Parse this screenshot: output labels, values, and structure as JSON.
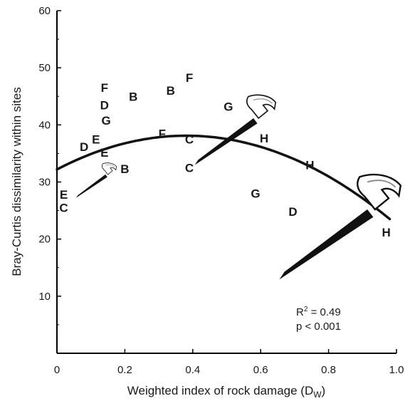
{
  "chart_data": {
    "type": "scatter",
    "title": "",
    "xlabel": "Weighted index of rock damage (D",
    "xlabel_sub": "W",
    "xlabel_close": ")",
    "ylabel": "Bray-Curtis dissimilarity within sites",
    "xlim": [
      0,
      1.0
    ],
    "ylim": [
      0,
      60
    ],
    "x_ticks": [
      "0",
      "0.2",
      "0.4",
      "0.6",
      "0.8",
      "1.0"
    ],
    "y_ticks": [
      "10",
      "20",
      "30",
      "40",
      "50",
      "60"
    ],
    "x_tick_values": [
      0,
      0.2,
      0.4,
      0.6,
      0.8,
      1.0
    ],
    "y_tick_values": [
      10,
      20,
      30,
      40,
      50,
      60
    ],
    "grid": false,
    "points": [
      {
        "label": "F",
        "x": 0.14,
        "y": 46.5
      },
      {
        "label": "D",
        "x": 0.14,
        "y": 43.5
      },
      {
        "label": "G",
        "x": 0.145,
        "y": 40.8
      },
      {
        "label": "E",
        "x": 0.115,
        "y": 37.5
      },
      {
        "label": "D",
        "x": 0.08,
        "y": 36.2
      },
      {
        "label": "E",
        "x": 0.14,
        "y": 35.2
      },
      {
        "label": "B",
        "x": 0.2,
        "y": 32.3
      },
      {
        "label": "E",
        "x": 0.02,
        "y": 27.8
      },
      {
        "label": "C",
        "x": 0.02,
        "y": 25.5
      },
      {
        "label": "B",
        "x": 0.225,
        "y": 45.0
      },
      {
        "label": "B",
        "x": 0.335,
        "y": 46.0
      },
      {
        "label": "F",
        "x": 0.39,
        "y": 48.3
      },
      {
        "label": "F",
        "x": 0.31,
        "y": 38.5
      },
      {
        "label": "C",
        "x": 0.39,
        "y": 37.5
      },
      {
        "label": "C",
        "x": 0.39,
        "y": 32.5
      },
      {
        "label": "G",
        "x": 0.505,
        "y": 43.2
      },
      {
        "label": "H",
        "x": 0.61,
        "y": 37.7
      },
      {
        "label": "H",
        "x": 0.745,
        "y": 33.0
      },
      {
        "label": "G",
        "x": 0.585,
        "y": 28.0
      },
      {
        "label": "D",
        "x": 0.695,
        "y": 24.8
      },
      {
        "label": "H",
        "x": 0.97,
        "y": 21.2
      }
    ],
    "fit": {
      "type": "quadratic",
      "a": -40.68,
      "b": 31.0,
      "c": 32.2,
      "x_from": 0.0,
      "x_to": 0.98
    },
    "annotation": {
      "r2_prefix": "R",
      "r2_sup": "2",
      "r2_value": " = 0.49",
      "p": "p < 0.001"
    },
    "icons": [
      "hammer-icon",
      "hammer-icon",
      "hammer-icon"
    ]
  }
}
